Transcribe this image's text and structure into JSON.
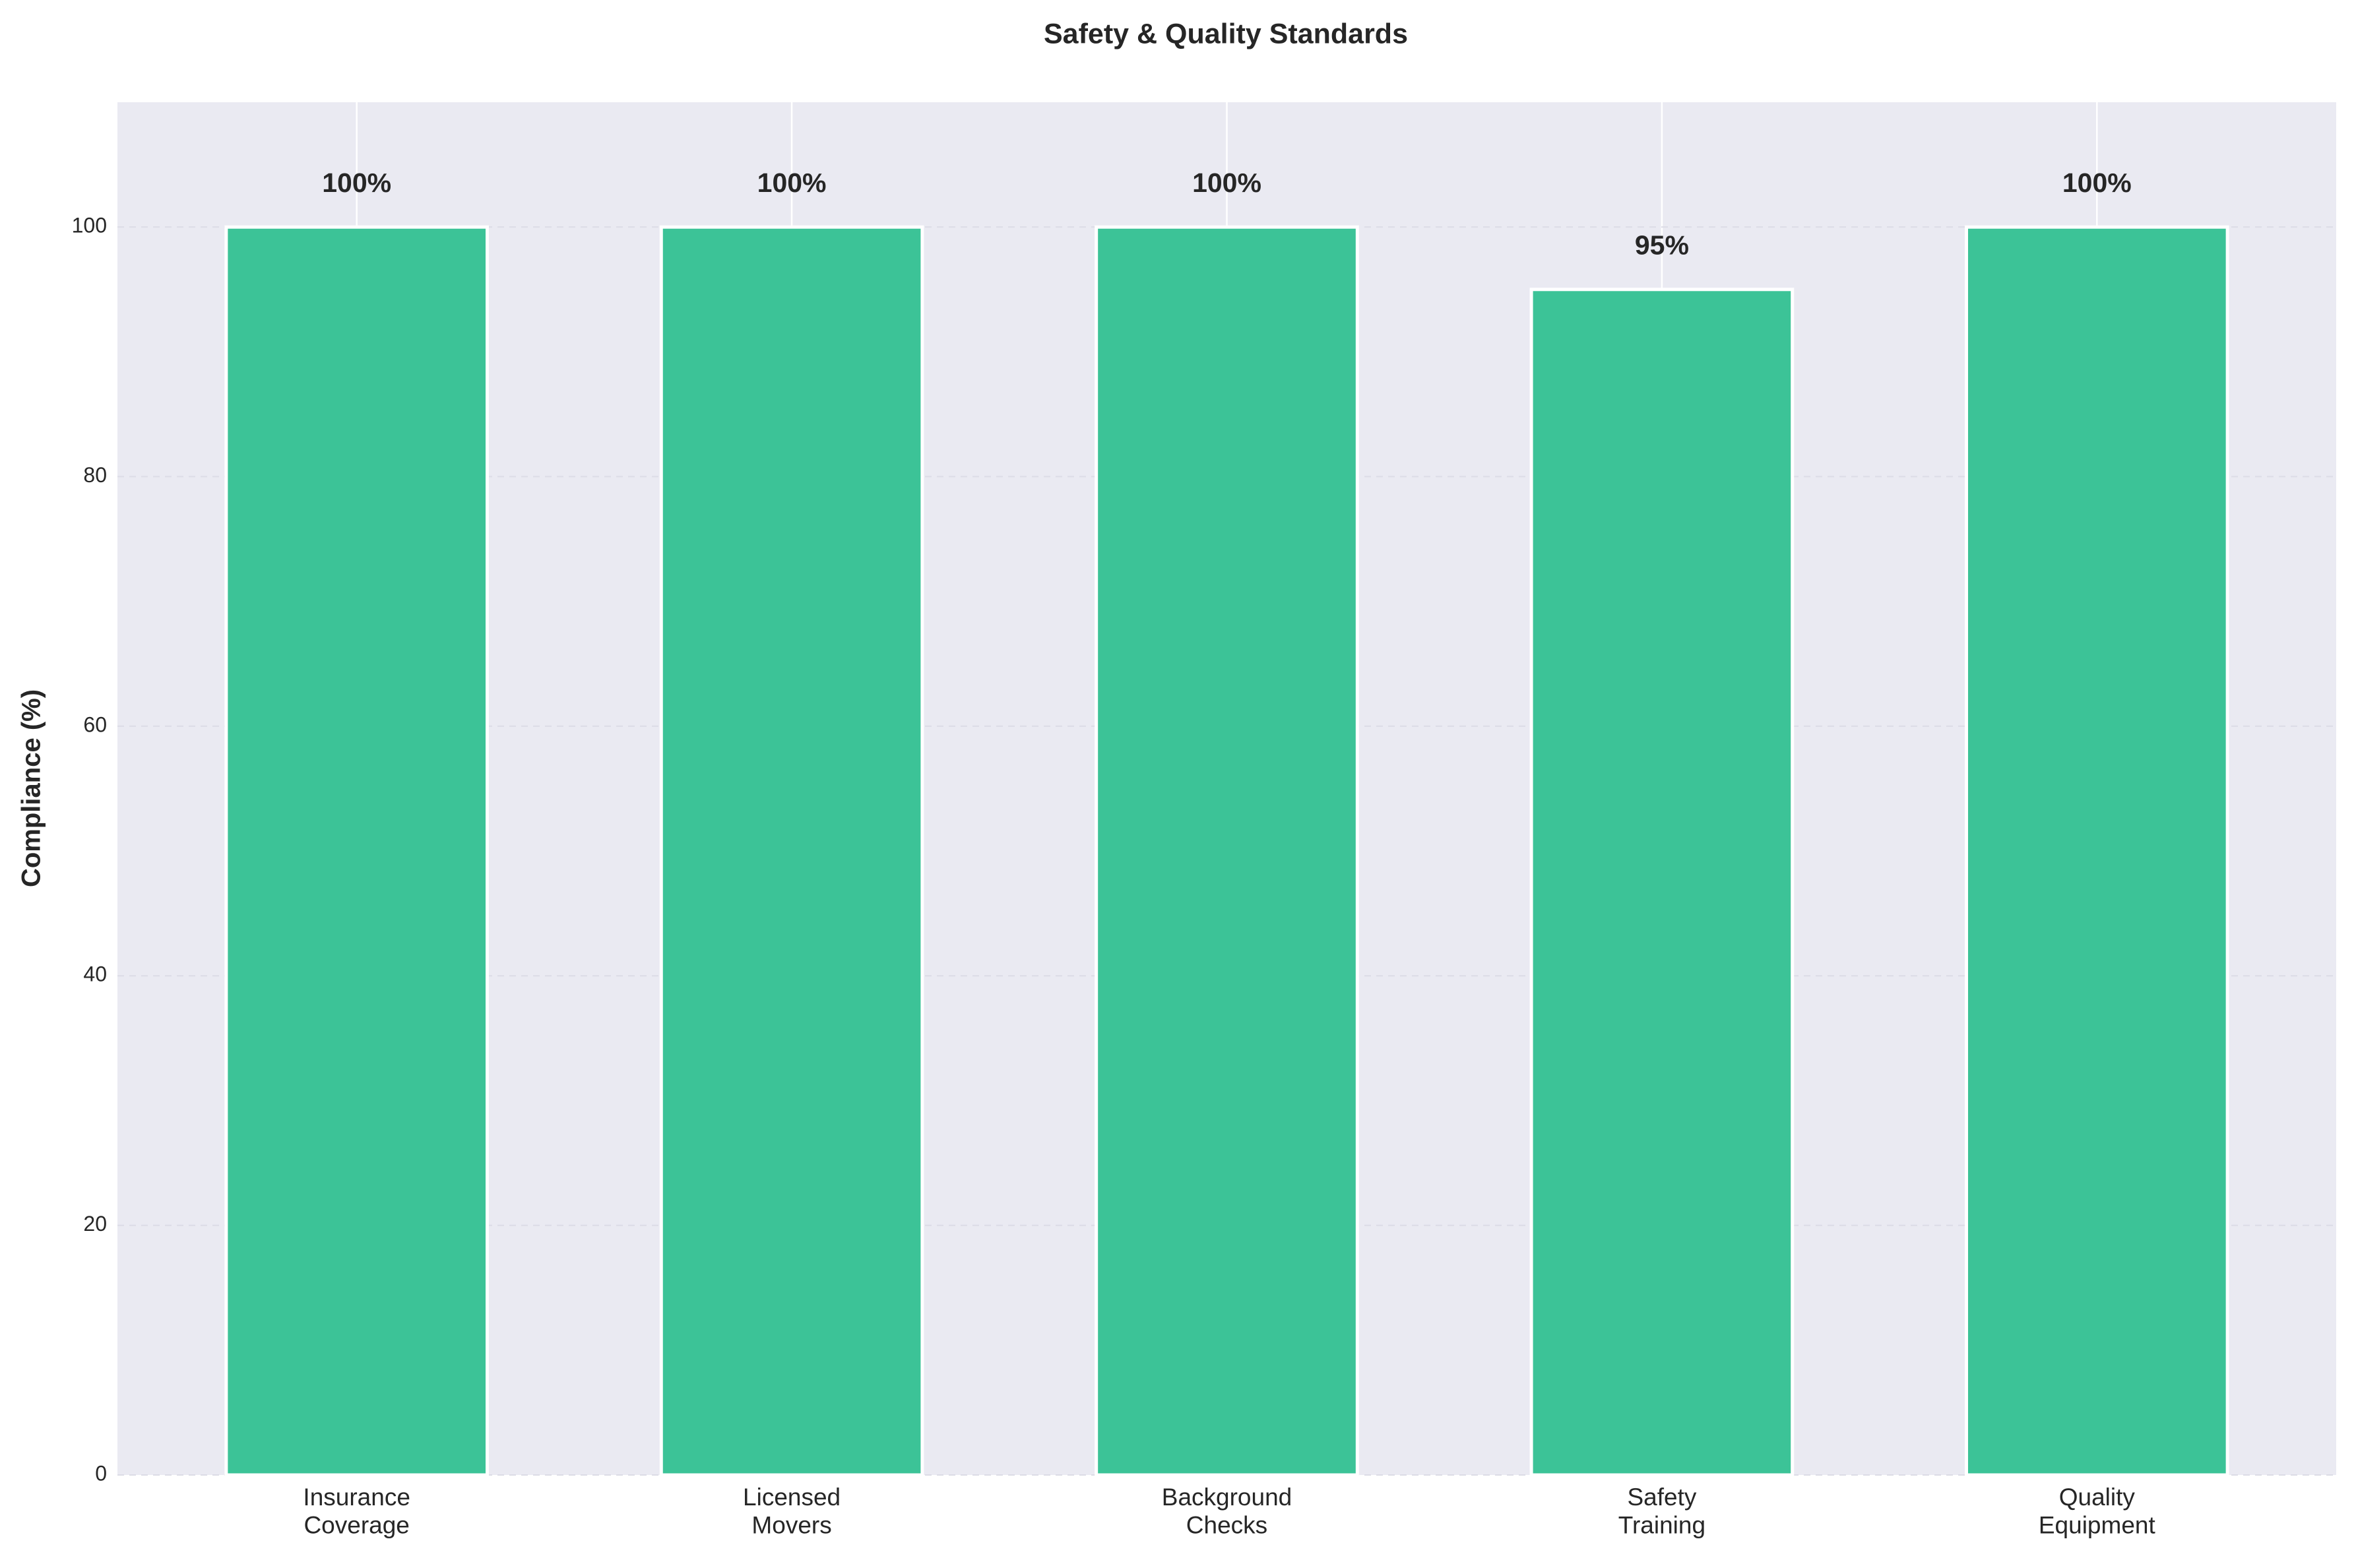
{
  "chart_data": {
    "type": "bar",
    "title": "Safety & Quality Standards",
    "y_label": "Compliance (%)",
    "categories": [
      "Insurance\nCoverage",
      "Licensed\nMovers",
      "Background\nChecks",
      "Safety\nTraining",
      "Quality\nEquipment"
    ],
    "values": [
      100,
      100,
      100,
      95,
      100
    ],
    "value_labels": [
      "100%",
      "100%",
      "100%",
      "95%",
      "100%"
    ],
    "color": "#3cc397",
    "ylim": [
      0,
      110
    ],
    "yticks": [
      0,
      20,
      40,
      60,
      80,
      100
    ],
    "grid": true
  }
}
